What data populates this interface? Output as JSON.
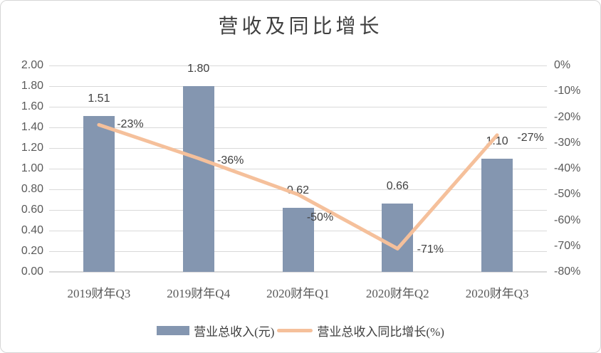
{
  "chart_data": {
    "type": "combo-bar-line",
    "title": "营收及同比增长",
    "categories": [
      "2019财年Q3",
      "2019财年Q4",
      "2020财年Q1",
      "2020财年Q2",
      "2020财年Q3"
    ],
    "series": [
      {
        "name": "营业总收入(元)",
        "type": "bar",
        "axis": "primary",
        "color": "#8496B0",
        "values": [
          1.51,
          1.8,
          0.62,
          0.66,
          1.1
        ],
        "data_labels": [
          "1.51",
          "1.80",
          "0.62",
          "0.66",
          "1.10"
        ]
      },
      {
        "name": "营业总收入同比增长(%)",
        "type": "line",
        "axis": "secondary",
        "color": "#F5C09B",
        "values": [
          -23,
          -36,
          -50,
          -71,
          -27
        ],
        "data_labels": [
          "-23%",
          "-36%",
          "-50%",
          "-71%",
          "-27%"
        ]
      }
    ],
    "primary_axis": {
      "min": 0.0,
      "max": 2.0,
      "tick_labels_top_to_bottom": [
        "2.00",
        "1.80",
        "1.60",
        "1.40",
        "1.20",
        "1.00",
        "0.80",
        "0.60",
        "0.40",
        "0.20",
        "0.00"
      ]
    },
    "secondary_axis": {
      "min": -80,
      "max": 0,
      "tick_labels_top_to_bottom": [
        "0%",
        "-10%",
        "-20%",
        "-30%",
        "-40%",
        "-50%",
        "-60%",
        "-70%",
        "-80%"
      ]
    },
    "legend_position": "bottom",
    "grid": "horizontal",
    "colors": {
      "bar": "#8496B0",
      "line": "#F5C09B",
      "gridline": "#D9D9D9",
      "tick_text": "#595959",
      "label_text": "#404040",
      "title_text": "#404040"
    }
  }
}
